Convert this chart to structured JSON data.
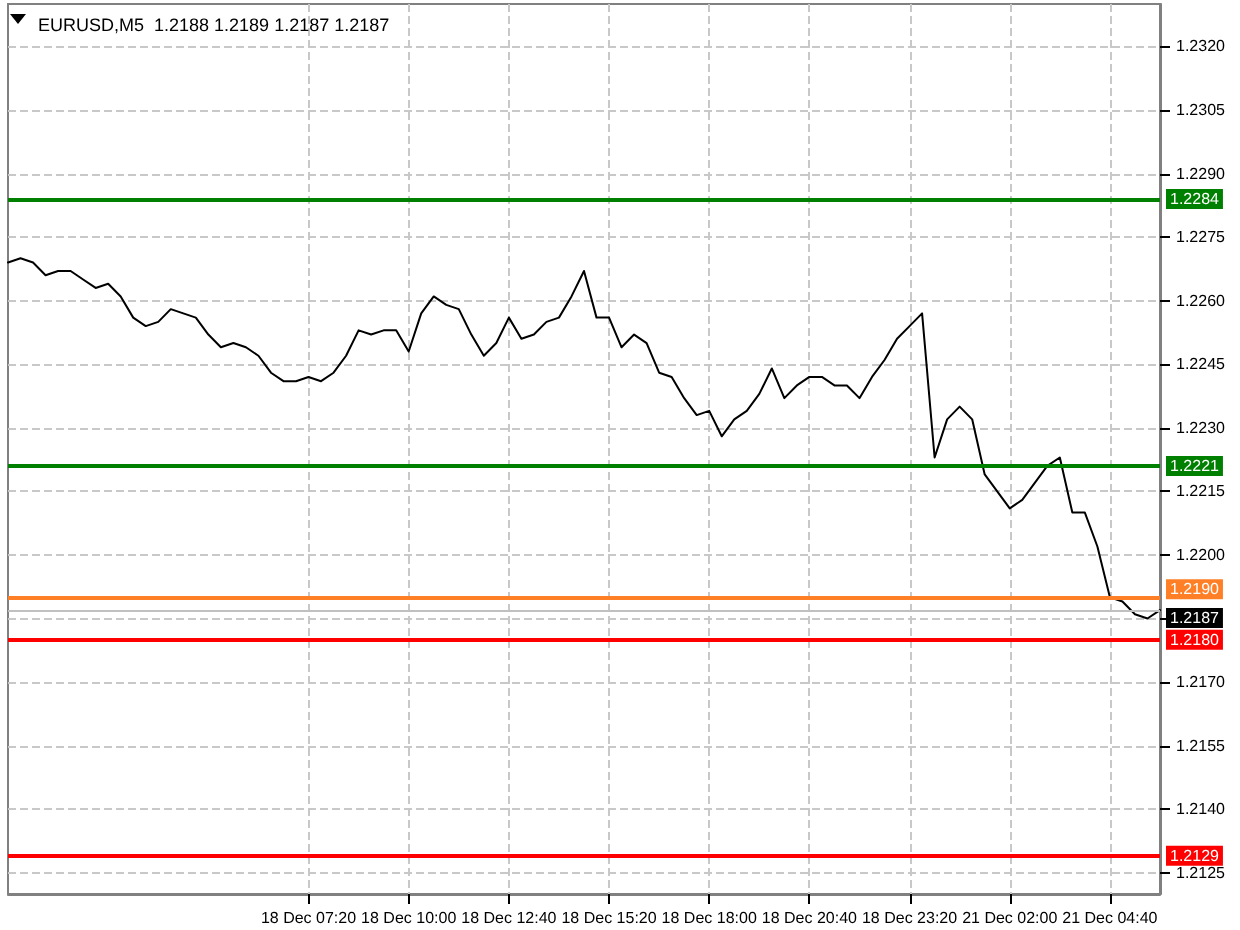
{
  "chart_data": {
    "type": "line",
    "title": "EURUSD,M5  1.2188 1.2189 1.2187 1.2187",
    "categories": [
      null,
      null,
      null,
      null,
      null,
      null,
      null,
      null,
      null,
      null,
      null,
      null,
      null,
      null,
      null,
      null,
      null,
      null,
      null,
      null,
      null,
      null,
      null,
      null,
      "18 Dec 07:20",
      null,
      null,
      null,
      null,
      null,
      null,
      null,
      "18 Dec 10:00",
      null,
      null,
      null,
      null,
      null,
      null,
      null,
      "18 Dec 12:40",
      null,
      null,
      null,
      null,
      null,
      null,
      null,
      "18 Dec 15:20",
      null,
      null,
      null,
      null,
      null,
      null,
      null,
      "18 Dec 18:00",
      null,
      null,
      null,
      null,
      null,
      null,
      null,
      "18 Dec 20:40",
      null,
      null,
      null,
      null,
      null,
      null,
      null,
      "18 Dec 23:20",
      null,
      null,
      null,
      null,
      null,
      null,
      null,
      "21 Dec 02:00",
      null,
      null,
      null,
      null,
      null,
      null,
      null,
      "21 Dec 04:40",
      null,
      null,
      null,
      null
    ],
    "series": [
      {
        "color": "#000000",
        "values": [
          1.2269,
          1.227,
          1.2269,
          1.2266,
          1.2267,
          1.2267,
          1.2265,
          1.2263,
          1.2264,
          1.2261,
          1.2256,
          1.2254,
          1.2255,
          1.2258,
          1.2257,
          1.2256,
          1.2252,
          1.2249,
          1.225,
          1.2249,
          1.2247,
          1.2243,
          1.2241,
          1.2241,
          1.2242,
          1.2241,
          1.2243,
          1.2247,
          1.2253,
          1.2252,
          1.2253,
          1.2253,
          1.2248,
          1.2257,
          1.2261,
          1.2259,
          1.2258,
          1.2252,
          1.2247,
          1.225,
          1.2256,
          1.2251,
          1.2252,
          1.2255,
          1.2256,
          1.2261,
          1.2267,
          1.2256,
          1.2256,
          1.2249,
          1.2252,
          1.225,
          1.2243,
          1.2242,
          1.2237,
          1.2233,
          1.2234,
          1.2228,
          1.2232,
          1.2234,
          1.2238,
          1.2244,
          1.2237,
          1.224,
          1.2242,
          1.2242,
          1.224,
          1.224,
          1.2237,
          1.2242,
          1.2246,
          1.2251,
          1.2254,
          1.2257,
          1.2223,
          1.2232,
          1.2235,
          1.2232,
          1.2219,
          1.2215,
          1.2211,
          1.2213,
          1.2217,
          1.2221,
          1.2223,
          1.221,
          1.221,
          1.2202,
          1.219,
          1.2189,
          1.2186,
          1.2185,
          1.2187
        ]
      }
    ],
    "ylim": [
      1.212,
      1.233
    ],
    "yticks": [
      {
        "value": 1.2125,
        "label": "1.2125"
      },
      {
        "value": 1.214,
        "label": "1.2140"
      },
      {
        "value": 1.2155,
        "label": "1.2155"
      },
      {
        "value": 1.217,
        "label": "1.2170"
      },
      {
        "value": 1.2185,
        "label": null
      },
      {
        "value": 1.22,
        "label": "1.2200"
      },
      {
        "value": 1.2215,
        "label": "1.2215"
      },
      {
        "value": 1.223,
        "label": "1.2230"
      },
      {
        "value": 1.2245,
        "label": "1.2245"
      },
      {
        "value": 1.226,
        "label": "1.2260"
      },
      {
        "value": 1.2275,
        "label": "1.2275"
      },
      {
        "value": 1.229,
        "label": "1.2290"
      },
      {
        "value": 1.2305,
        "label": "1.2305"
      },
      {
        "value": 1.232,
        "label": "1.2320"
      }
    ],
    "ref_lines": [
      {
        "axis": "y",
        "value": 1.2284,
        "label": "1.2284",
        "color": "#008000"
      },
      {
        "axis": "y",
        "value": 1.2221,
        "label": "1.2221",
        "color": "#008000"
      },
      {
        "axis": "y",
        "value": 1.219,
        "label": "1.2190",
        "color": "#ff7f27"
      },
      {
        "axis": "y",
        "value": 1.2187,
        "label": "1.2187",
        "color": "#c0c0c0"
      },
      {
        "axis": "y",
        "value": 1.218,
        "label": "1.2180",
        "color": "#ff0000"
      },
      {
        "axis": "y",
        "value": 1.2129,
        "label": "1.2129",
        "color": "#ff0000"
      }
    ],
    "grid": true,
    "line_style": "solid",
    "marker": "none"
  }
}
